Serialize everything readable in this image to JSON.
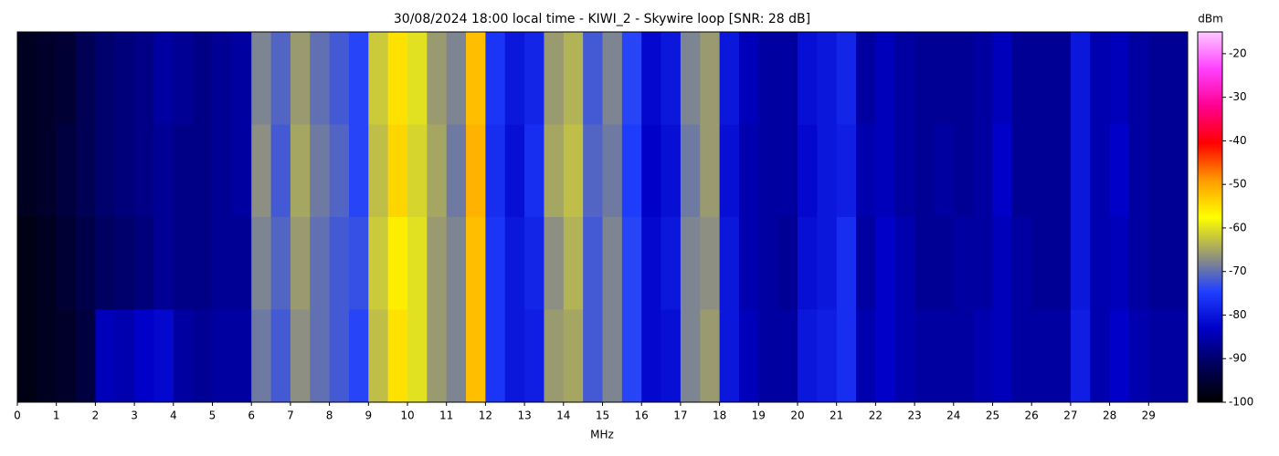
{
  "chart_data": {
    "type": "heatmap",
    "title": "30/08/2024 18:00 local time - KIWI_2 - Skywire loop [SNR: 28 dB]",
    "xlabel": "MHz",
    "colorbar_label": "dBm",
    "xlim": [
      0,
      30
    ],
    "xticks": [
      0,
      1,
      2,
      3,
      4,
      5,
      6,
      7,
      8,
      9,
      10,
      11,
      12,
      13,
      14,
      15,
      16,
      17,
      18,
      19,
      20,
      21,
      22,
      23,
      24,
      25,
      26,
      27,
      28,
      29
    ],
    "zlim": [
      -100,
      -15
    ],
    "zticks": [
      -100,
      -90,
      -80,
      -70,
      -60,
      -50,
      -40,
      -30,
      -20
    ],
    "colorscale": [
      "#000000",
      "#00005a",
      "#0000c8",
      "#2040ff",
      "#9a9a70",
      "#ffff00",
      "#ff9a00",
      "#ff0000",
      "#ff0090",
      "#ff40ff",
      "#ffc8ff"
    ],
    "bins": [
      0,
      0.5,
      1,
      1.5,
      2,
      2.5,
      3,
      3.5,
      4,
      4.5,
      5,
      5.5,
      6,
      6.5,
      7,
      7.5,
      8,
      8.5,
      9,
      9.5,
      10,
      10.5,
      11,
      11.5,
      12,
      12.5,
      13,
      13.5,
      14,
      14.5,
      15,
      15.5,
      16,
      16.5,
      17,
      17.5,
      18,
      18.5,
      19,
      19.5,
      20,
      20.5,
      21,
      21.5,
      22,
      22.5,
      23,
      23.5,
      24,
      24.5,
      25,
      25.5,
      26,
      26.5,
      27,
      27.5,
      28,
      28.5,
      29,
      29.5,
      30
    ],
    "values": [
      [
        -97,
        -96,
        -95,
        -92,
        -90,
        -89,
        -88,
        -86,
        -87,
        -88,
        -87,
        -86,
        -68,
        -71,
        -66,
        -70,
        -72,
        -74,
        -62,
        -55,
        -60,
        -66,
        -68,
        -52,
        -76,
        -80,
        -78,
        -66,
        -64,
        -72,
        -68,
        -74,
        -82,
        -80,
        -68,
        -66,
        -80,
        -84,
        -86,
        -86,
        -81,
        -80,
        -78,
        -86,
        -84,
        -86,
        -87,
        -87,
        -87,
        -86,
        -84,
        -87,
        -87,
        -87,
        -80,
        -85,
        -84,
        -86,
        -87,
        -87
      ],
      [
        -97,
        -96,
        -94,
        -92,
        -90,
        -89,
        -88,
        -87,
        -88,
        -88,
        -87,
        -86,
        -67,
        -72,
        -65,
        -69,
        -71,
        -74,
        -63,
        -54,
        -61,
        -65,
        -69,
        -51,
        -77,
        -81,
        -77,
        -65,
        -63,
        -71,
        -69,
        -75,
        -83,
        -81,
        -69,
        -66,
        -81,
        -85,
        -86,
        -86,
        -82,
        -80,
        -79,
        -85,
        -84,
        -86,
        -87,
        -86,
        -87,
        -86,
        -83,
        -87,
        -87,
        -87,
        -80,
        -85,
        -83,
        -86,
        -87,
        -87
      ],
      [
        -98,
        -97,
        -95,
        -93,
        -91,
        -90,
        -89,
        -87,
        -88,
        -88,
        -87,
        -87,
        -68,
        -71,
        -66,
        -70,
        -72,
        -73,
        -62,
        -56,
        -60,
        -66,
        -68,
        -52,
        -76,
        -80,
        -78,
        -67,
        -64,
        -72,
        -68,
        -74,
        -82,
        -80,
        -68,
        -67,
        -80,
        -85,
        -86,
        -87,
        -81,
        -80,
        -77,
        -86,
        -83,
        -85,
        -87,
        -87,
        -86,
        -86,
        -84,
        -86,
        -87,
        -87,
        -80,
        -85,
        -84,
        -86,
        -87,
        -87
      ],
      [
        -98,
        -97,
        -96,
        -94,
        -84,
        -85,
        -83,
        -82,
        -86,
        -87,
        -86,
        -86,
        -69,
        -72,
        -67,
        -70,
        -72,
        -74,
        -63,
        -55,
        -60,
        -66,
        -68,
        -52,
        -76,
        -80,
        -79,
        -66,
        -65,
        -72,
        -68,
        -74,
        -82,
        -81,
        -68,
        -66,
        -80,
        -84,
        -86,
        -86,
        -80,
        -79,
        -77,
        -85,
        -83,
        -85,
        -86,
        -86,
        -86,
        -85,
        -84,
        -86,
        -86,
        -86,
        -79,
        -85,
        -83,
        -85,
        -86,
        -86
      ]
    ]
  }
}
